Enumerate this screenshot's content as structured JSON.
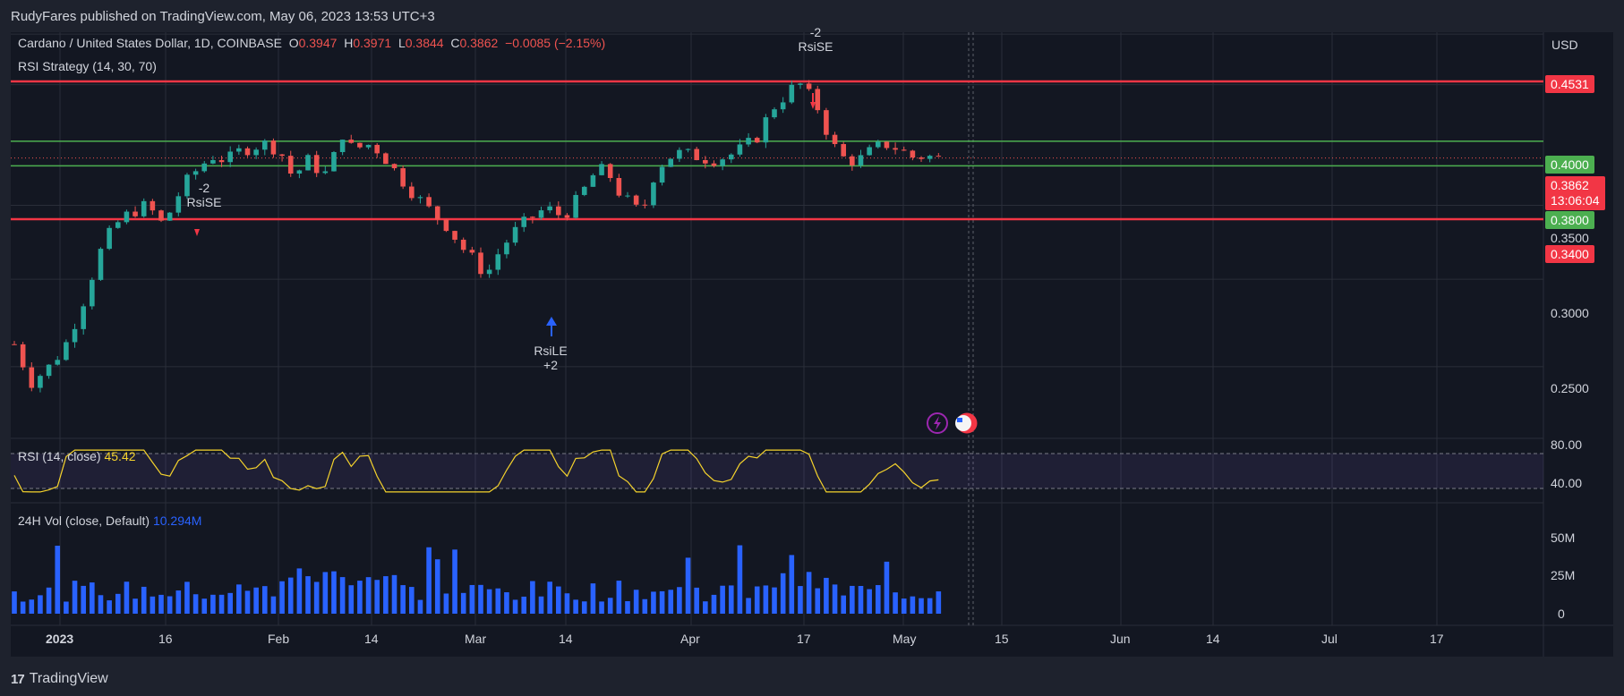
{
  "header": {
    "publisher": "RudyFares published on TradingView.com, May 06, 2023 13:53 UTC+3"
  },
  "legend": {
    "symbol": "Cardano / United States Dollar, 1D, COINBASE",
    "o_label": "O",
    "o": "0.3947",
    "h_label": "H",
    "h": "0.3971",
    "l_label": "L",
    "l": "0.3844",
    "c_label": "C",
    "c": "0.3862",
    "change": "−0.0085 (−2.15%)",
    "strategy": "RSI Strategy (14, 30, 70)"
  },
  "price_scale": {
    "currency": "USD",
    "tags": {
      "t4531": "0.4531",
      "t4000": "0.4000",
      "t3862": "0.3862",
      "countdown": "13:06:04",
      "t3800": "0.3800",
      "t3400": "0.3400"
    },
    "ticks": {
      "p3500": "0.3500",
      "p3000": "0.3000",
      "p2500": "0.2500"
    }
  },
  "rsi_pane": {
    "title": "RSI (14, close)",
    "value": "45.42",
    "upper": "80.00",
    "lower": "40.00"
  },
  "vol_pane": {
    "title": "24H Vol (close, Default)",
    "value": "10.294M",
    "t50": "50M",
    "t25": "25M",
    "t0": "0"
  },
  "time_axis": {
    "labels": [
      "2023",
      "16",
      "Feb",
      "14",
      "Mar",
      "14",
      "Apr",
      "17",
      "May",
      "15",
      "Jun",
      "14",
      "Jul",
      "17"
    ]
  },
  "signals": {
    "s1": {
      "count": "-2",
      "name": "RsiSE"
    },
    "s2": {
      "name": "RsiLE",
      "count": "+2"
    },
    "s3": {
      "count": "-2",
      "name": "RsiSE"
    }
  },
  "footer": {
    "brand": "TradingView",
    "mark": "17"
  },
  "colors": {
    "up": "#26a69a",
    "down": "#ef5350",
    "bg": "#131722",
    "volume": "#2962ff",
    "rsi": "#f5d32c",
    "level_red": "#f23645",
    "level_green": "#4caf50"
  },
  "chart_data": {
    "type": "candlestick",
    "title": "Cardano / United States Dollar, 1D, COINBASE",
    "x_range": [
      "2022-12-31",
      "2023-07-27"
    ],
    "y_scale": "log",
    "ylim": [
      0.22,
      0.5
    ],
    "horizontal_levels": [
      0.4531,
      0.4,
      0.38,
      0.34
    ],
    "last_close": 0.3862,
    "close_path": [
      [
        0,
        0.262
      ],
      [
        5,
        0.242
      ],
      [
        10,
        0.249
      ],
      [
        15,
        0.26
      ],
      [
        20,
        0.282
      ],
      [
        26,
        0.318
      ],
      [
        30,
        0.335
      ],
      [
        35,
        0.345
      ],
      [
        40,
        0.35
      ],
      [
        45,
        0.335
      ],
      [
        48,
        0.352
      ],
      [
        52,
        0.368
      ],
      [
        56,
        0.38
      ],
      [
        60,
        0.388
      ],
      [
        64,
        0.384
      ],
      [
        68,
        0.392
      ],
      [
        72,
        0.396
      ],
      [
        76,
        0.398
      ],
      [
        80,
        0.392
      ],
      [
        84,
        0.37
      ],
      [
        88,
        0.385
      ],
      [
        92,
        0.376
      ],
      [
        95,
        0.372
      ],
      [
        98,
        0.41
      ],
      [
        102,
        0.392
      ],
      [
        106,
        0.398
      ],
      [
        110,
        0.392
      ],
      [
        114,
        0.378
      ],
      [
        118,
        0.365
      ],
      [
        122,
        0.354
      ],
      [
        126,
        0.344
      ],
      [
        130,
        0.336
      ],
      [
        135,
        0.32
      ],
      [
        140,
        0.308
      ],
      [
        142,
        0.302
      ],
      [
        146,
        0.318
      ],
      [
        150,
        0.33
      ],
      [
        155,
        0.34
      ],
      [
        160,
        0.348
      ],
      [
        165,
        0.342
      ],
      [
        170,
        0.355
      ],
      [
        174,
        0.372
      ],
      [
        178,
        0.378
      ],
      [
        182,
        0.36
      ],
      [
        186,
        0.349
      ],
      [
        189,
        0.344
      ],
      [
        192,
        0.37
      ],
      [
        196,
        0.386
      ],
      [
        200,
        0.39
      ],
      [
        205,
        0.388
      ],
      [
        210,
        0.385
      ],
      [
        215,
        0.388
      ],
      [
        220,
        0.395
      ],
      [
        224,
        0.405
      ],
      [
        228,
        0.428
      ],
      [
        232,
        0.44
      ],
      [
        236,
        0.452
      ],
      [
        238,
        0.445
      ],
      [
        242,
        0.428
      ],
      [
        246,
        0.398
      ],
      [
        250,
        0.385
      ],
      [
        254,
        0.384
      ],
      [
        258,
        0.392
      ],
      [
        262,
        0.398
      ],
      [
        266,
        0.394
      ],
      [
        270,
        0.387
      ],
      [
        274,
        0.388
      ],
      [
        278,
        0.386
      ],
      [
        280,
        0.3862
      ]
    ],
    "rsi": {
      "title": "RSI (14, close)",
      "last": 45.42,
      "bands": [
        40,
        80
      ]
    },
    "volume": {
      "title": "24H Vol (close, Default)",
      "last_millions": 10.294,
      "ticks_millions": [
        0,
        25,
        50
      ]
    }
  }
}
